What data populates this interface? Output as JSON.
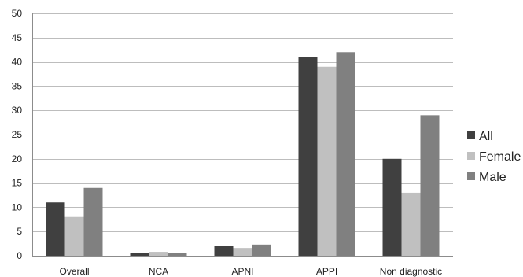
{
  "chart_data": {
    "type": "bar",
    "title": "",
    "xlabel": "",
    "ylabel": "",
    "categories": [
      "Overall",
      "NCA",
      "APNI",
      "APPI",
      "Non diagnostic"
    ],
    "series": [
      {
        "name": "All",
        "values": [
          11,
          0.6,
          2,
          41,
          20
        ],
        "color": "#404040"
      },
      {
        "name": "Female",
        "values": [
          8,
          0.8,
          1.6,
          39,
          13
        ],
        "color": "#c0c0c0"
      },
      {
        "name": "Male",
        "values": [
          14,
          0.5,
          2.3,
          42,
          29
        ],
        "color": "#808080"
      }
    ],
    "ylim": [
      0,
      50
    ],
    "yticks": [
      0,
      5,
      10,
      15,
      20,
      25,
      30,
      35,
      40,
      45,
      50
    ],
    "grid": true,
    "legend_position": "right"
  }
}
